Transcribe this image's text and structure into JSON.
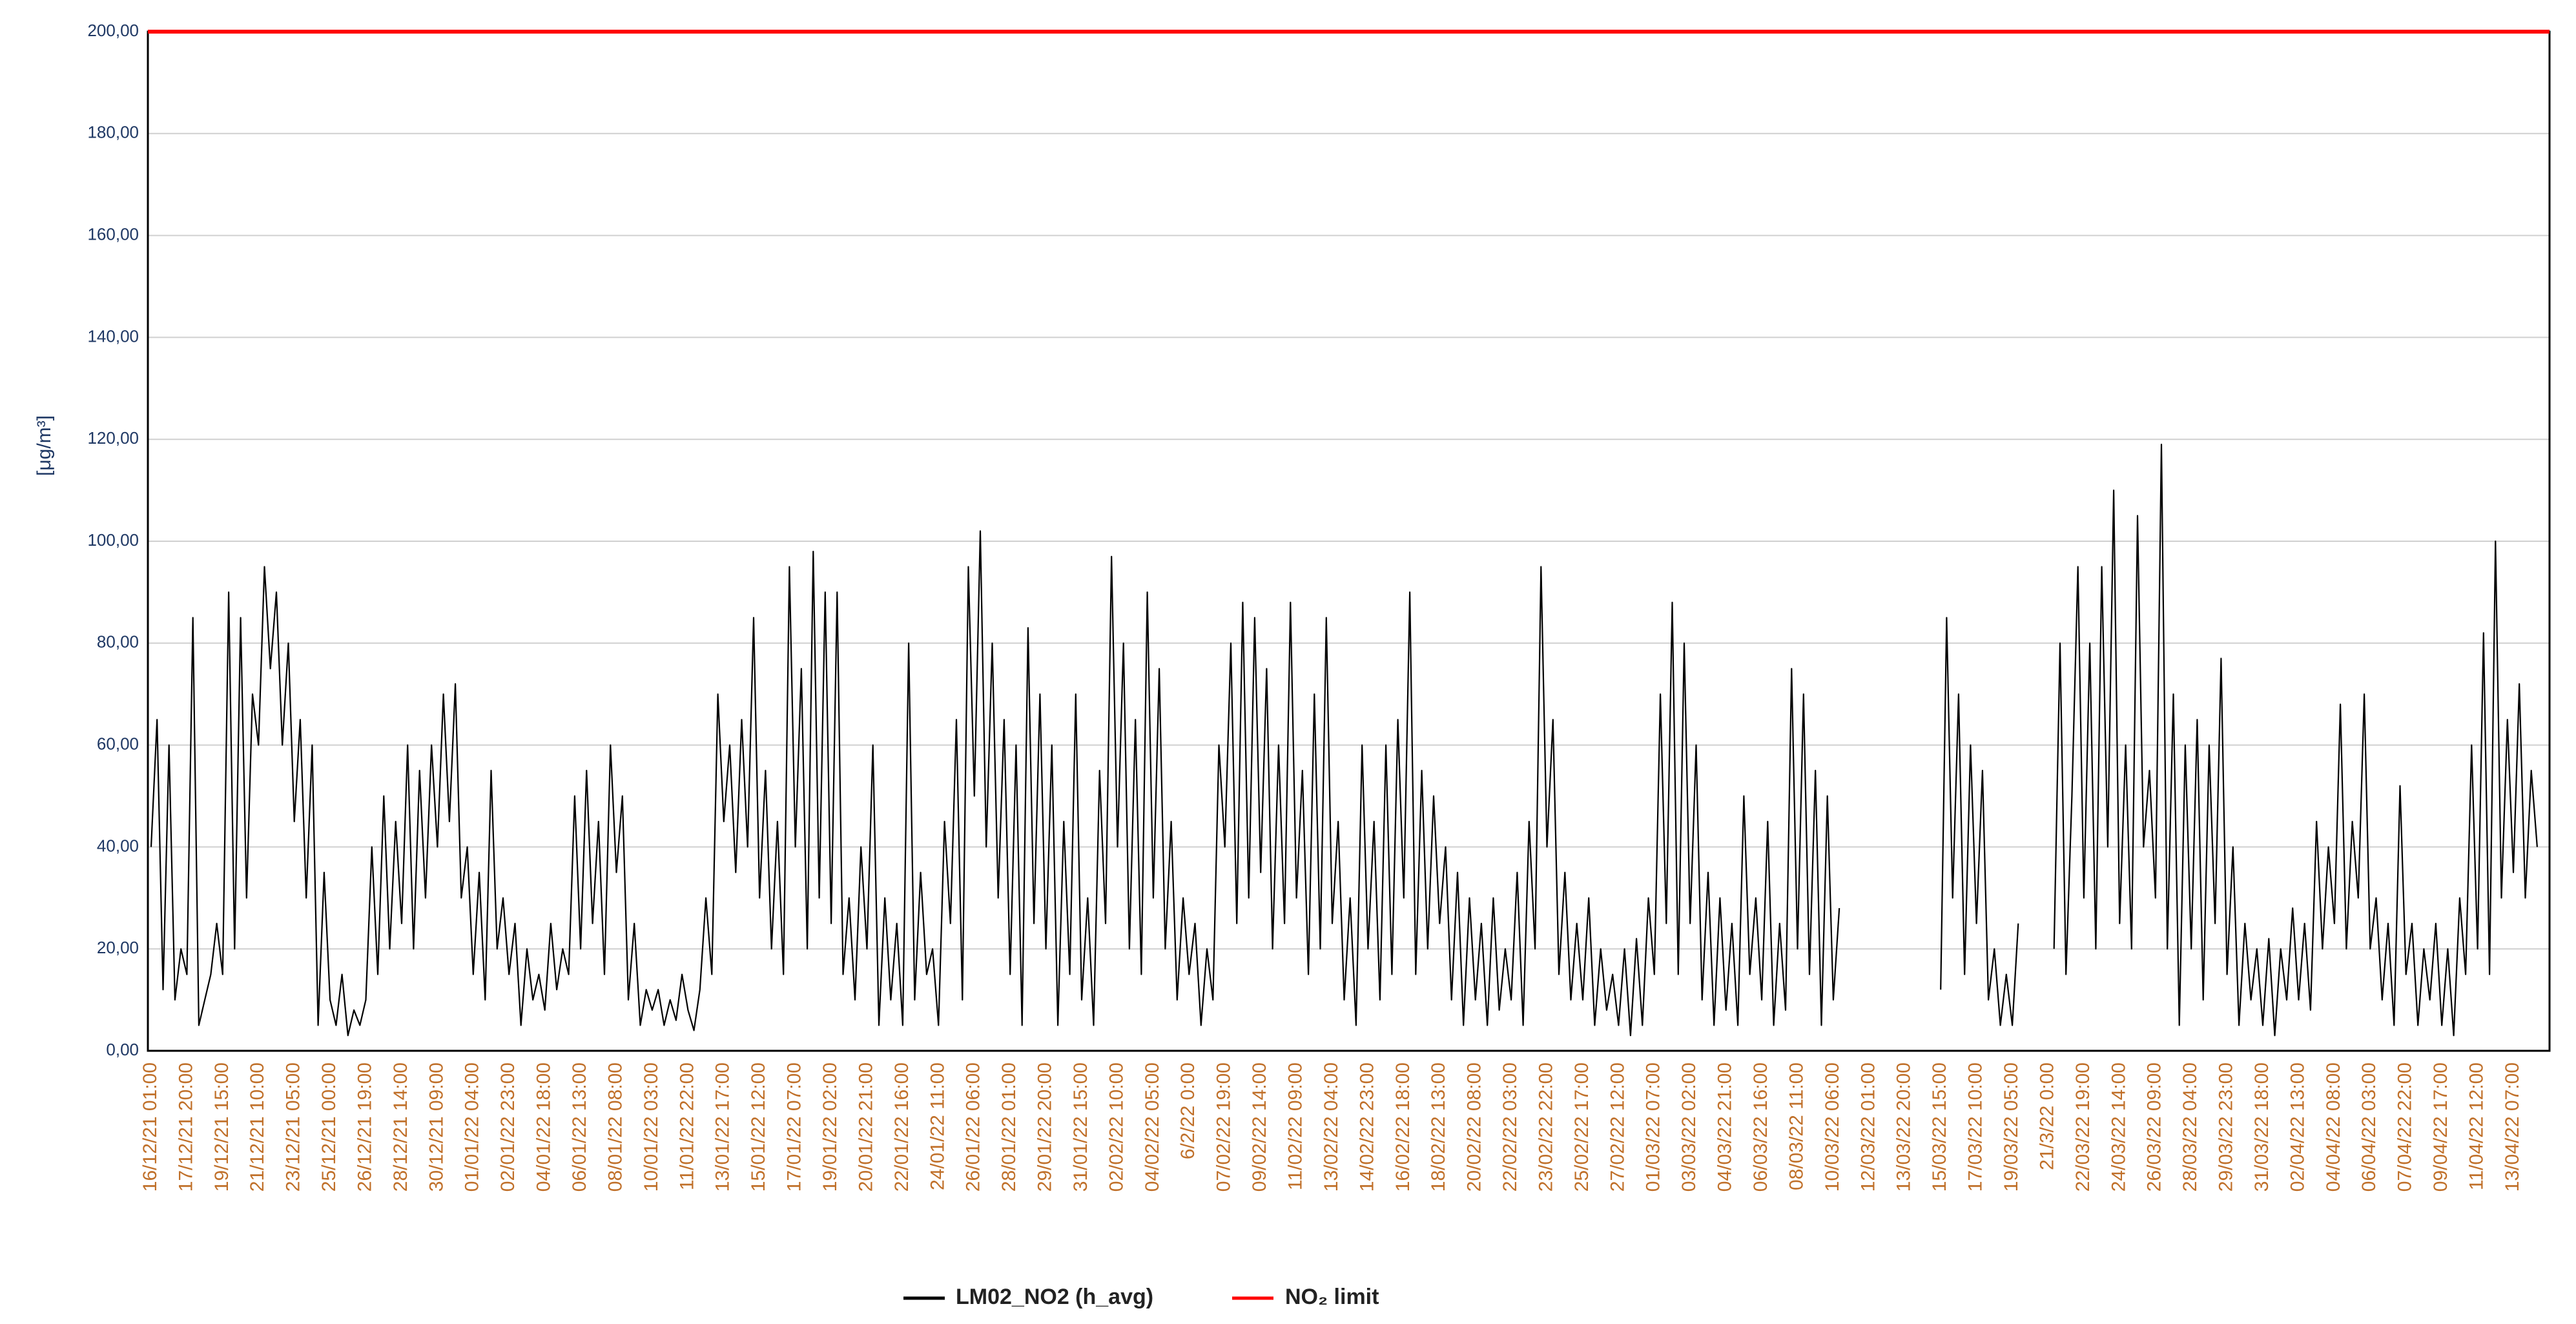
{
  "chart_data": {
    "type": "line",
    "y_label": "[μg/m³]",
    "categories": [
      "16/12/21 01:00",
      null,
      null,
      null,
      null,
      null,
      "17/12/21 20:00",
      null,
      null,
      null,
      null,
      null,
      "19/12/21 15:00",
      null,
      null,
      null,
      null,
      null,
      "21/12/21 10:00",
      null,
      null,
      null,
      null,
      null,
      "23/12/21 05:00",
      null,
      null,
      null,
      null,
      null,
      "25/12/21 00:00",
      null,
      null,
      null,
      null,
      null,
      "26/12/21 19:00",
      null,
      null,
      null,
      null,
      null,
      "28/12/21 14:00",
      null,
      null,
      null,
      null,
      null,
      "30/12/21 09:00",
      null,
      null,
      null,
      null,
      null,
      "01/01/22 04:00",
      null,
      null,
      null,
      null,
      null,
      "02/01/22 23:00",
      null,
      null,
      null,
      null,
      null,
      "04/01/22 18:00",
      null,
      null,
      null,
      null,
      null,
      "06/01/22 13:00",
      null,
      null,
      null,
      null,
      null,
      "08/01/22 08:00",
      null,
      null,
      null,
      null,
      null,
      "10/01/22 03:00",
      null,
      null,
      null,
      null,
      null,
      "11/01/22 22:00",
      null,
      null,
      null,
      null,
      null,
      "13/01/22 17:00",
      null,
      null,
      null,
      null,
      null,
      "15/01/22 12:00",
      null,
      null,
      null,
      null,
      null,
      "17/01/22 07:00",
      null,
      null,
      null,
      null,
      null,
      "19/01/22 02:00",
      null,
      null,
      null,
      null,
      null,
      "20/01/22 21:00",
      null,
      null,
      null,
      null,
      null,
      "22/01/22 16:00",
      null,
      null,
      null,
      null,
      null,
      "24/01/22 11:00",
      null,
      null,
      null,
      null,
      null,
      "26/01/22 06:00",
      null,
      null,
      null,
      null,
      null,
      "28/01/22 01:00",
      null,
      null,
      null,
      null,
      null,
      "29/01/22 20:00",
      null,
      null,
      null,
      null,
      null,
      "31/01/22 15:00",
      null,
      null,
      null,
      null,
      null,
      "02/02/22 10:00",
      null,
      null,
      null,
      null,
      null,
      "04/02/22 05:00",
      null,
      null,
      null,
      null,
      null,
      "6/2/22 0:00",
      null,
      null,
      null,
      null,
      null,
      "07/02/22 19:00",
      null,
      null,
      null,
      null,
      null,
      "09/02/22 14:00",
      null,
      null,
      null,
      null,
      null,
      "11/02/22 09:00",
      null,
      null,
      null,
      null,
      null,
      "13/02/22 04:00",
      null,
      null,
      null,
      null,
      null,
      "14/02/22 23:00",
      null,
      null,
      null,
      null,
      null,
      "16/02/22 18:00",
      null,
      null,
      null,
      null,
      null,
      "18/02/22 13:00",
      null,
      null,
      null,
      null,
      null,
      "20/02/22 08:00",
      null,
      null,
      null,
      null,
      null,
      "22/02/22 03:00",
      null,
      null,
      null,
      null,
      null,
      "23/02/22 22:00",
      null,
      null,
      null,
      null,
      null,
      "25/02/22 17:00",
      null,
      null,
      null,
      null,
      null,
      "27/02/22 12:00",
      null,
      null,
      null,
      null,
      null,
      "01/03/22 07:00",
      null,
      null,
      null,
      null,
      null,
      "03/03/22 02:00",
      null,
      null,
      null,
      null,
      null,
      "04/03/22 21:00",
      null,
      null,
      null,
      null,
      null,
      "06/03/22 16:00",
      null,
      null,
      null,
      null,
      null,
      "08/03/22 11:00",
      null,
      null,
      null,
      null,
      null,
      "10/03/22 06:00",
      null,
      null,
      null,
      null,
      null,
      "12/03/22 01:00",
      null,
      null,
      null,
      null,
      null,
      "13/03/22 20:00",
      null,
      null,
      null,
      null,
      null,
      "15/03/22 15:00",
      null,
      null,
      null,
      null,
      null,
      "17/03/22 10:00",
      null,
      null,
      null,
      null,
      null,
      "19/03/22 05:00",
      null,
      null,
      null,
      null,
      null,
      "21/3/22 0:00",
      null,
      null,
      null,
      null,
      null,
      "22/03/22 19:00",
      null,
      null,
      null,
      null,
      null,
      "24/03/22 14:00",
      null,
      null,
      null,
      null,
      null,
      "26/03/22 09:00",
      null,
      null,
      null,
      null,
      null,
      "28/03/22 04:00",
      null,
      null,
      null,
      null,
      null,
      "29/03/22 23:00",
      null,
      null,
      null,
      null,
      null,
      "31/03/22 18:00",
      null,
      null,
      null,
      null,
      null,
      "02/04/22 13:00",
      null,
      null,
      null,
      null,
      null,
      "04/04/22 08:00",
      null,
      null,
      null,
      null,
      null,
      "06/04/22 03:00",
      null,
      null,
      null,
      null,
      null,
      "07/04/22 22:00",
      null,
      null,
      null,
      null,
      null,
      "09/04/22 17:00",
      null,
      null,
      null,
      null,
      null,
      "11/04/22 12:00",
      null,
      null,
      null,
      null,
      null,
      "13/04/22 07:00",
      null,
      null,
      null,
      null
    ],
    "series": [
      {
        "name": "LM02_NO2 (h_avg)",
        "color": "#000000",
        "values": [
          40,
          65,
          12,
          60,
          10,
          20,
          15,
          85,
          5,
          10,
          15,
          25,
          15,
          90,
          20,
          85,
          30,
          70,
          60,
          95,
          75,
          90,
          60,
          80,
          45,
          65,
          30,
          60,
          5,
          35,
          10,
          5,
          15,
          3,
          8,
          5,
          10,
          40,
          15,
          50,
          20,
          45,
          25,
          60,
          20,
          55,
          30,
          60,
          40,
          70,
          45,
          72,
          30,
          40,
          15,
          35,
          10,
          55,
          20,
          30,
          15,
          25,
          5,
          20,
          10,
          15,
          8,
          25,
          12,
          20,
          15,
          50,
          20,
          55,
          25,
          45,
          15,
          60,
          35,
          50,
          10,
          25,
          5,
          12,
          8,
          12,
          5,
          10,
          6,
          15,
          8,
          4,
          12,
          30,
          15,
          70,
          45,
          60,
          35,
          65,
          40,
          85,
          30,
          55,
          20,
          45,
          15,
          95,
          40,
          75,
          20,
          98,
          30,
          90,
          25,
          90,
          15,
          30,
          10,
          40,
          20,
          60,
          5,
          30,
          10,
          25,
          5,
          80,
          10,
          35,
          15,
          20,
          5,
          45,
          25,
          65,
          10,
          95,
          50,
          102,
          40,
          80,
          30,
          65,
          15,
          60,
          5,
          83,
          25,
          70,
          20,
          60,
          5,
          45,
          15,
          70,
          10,
          30,
          5,
          55,
          25,
          97,
          40,
          80,
          20,
          65,
          15,
          90,
          30,
          75,
          20,
          45,
          10,
          30,
          15,
          25,
          5,
          20,
          10,
          60,
          40,
          80,
          25,
          88,
          30,
          85,
          35,
          75,
          20,
          60,
          25,
          88,
          30,
          55,
          15,
          70,
          20,
          85,
          25,
          45,
          10,
          30,
          5,
          60,
          20,
          45,
          10,
          60,
          15,
          65,
          30,
          90,
          15,
          55,
          20,
          50,
          25,
          40,
          10,
          35,
          5,
          30,
          10,
          25,
          5,
          30,
          8,
          20,
          10,
          35,
          5,
          45,
          20,
          95,
          40,
          65,
          15,
          35,
          10,
          25,
          10,
          30,
          5,
          20,
          8,
          15,
          5,
          20,
          3,
          22,
          5,
          30,
          15,
          70,
          25,
          88,
          15,
          80,
          25,
          60,
          10,
          35,
          5,
          30,
          8,
          25,
          5,
          50,
          15,
          30,
          10,
          45,
          5,
          25,
          8,
          75,
          20,
          70,
          15,
          55,
          5,
          50,
          10,
          28,
          null,
          null,
          null,
          null,
          null,
          null,
          null,
          null,
          null,
          null,
          null,
          null,
          null,
          null,
          null,
          null,
          12,
          85,
          30,
          70,
          15,
          60,
          25,
          55,
          10,
          20,
          5,
          15,
          5,
          25,
          null,
          null,
          null,
          null,
          null,
          20,
          80,
          15,
          50,
          95,
          30,
          80,
          20,
          95,
          40,
          110,
          25,
          60,
          20,
          105,
          40,
          55,
          30,
          119,
          20,
          70,
          5,
          60,
          20,
          65,
          10,
          60,
          25,
          77,
          15,
          40,
          5,
          25,
          10,
          20,
          5,
          22,
          3,
          20,
          10,
          28,
          10,
          25,
          8,
          45,
          20,
          40,
          25,
          68,
          20,
          45,
          30,
          70,
          20,
          30,
          10,
          25,
          5,
          52,
          15,
          25,
          5,
          20,
          10,
          25,
          5,
          20,
          3,
          30,
          15,
          60,
          20,
          82,
          15,
          100,
          30,
          65,
          35,
          72,
          30,
          55,
          40
        ]
      }
    ],
    "reference_line": {
      "name": "NO₂ limit",
      "value": 200,
      "color": "#ff0000"
    },
    "ylim": [
      0,
      200
    ],
    "yticks": [
      {
        "value": 0,
        "label": "0,00"
      },
      {
        "value": 20,
        "label": "20,00"
      },
      {
        "value": 40,
        "label": "40,00"
      },
      {
        "value": 60,
        "label": "60,00"
      },
      {
        "value": 80,
        "label": "80,00"
      },
      {
        "value": 100,
        "label": "100,00"
      },
      {
        "value": 120,
        "label": "120,00"
      },
      {
        "value": 140,
        "label": "140,00"
      },
      {
        "value": 160,
        "label": "160,00"
      },
      {
        "value": 180,
        "label": "180,00"
      },
      {
        "value": 200,
        "label": "200,00"
      }
    ],
    "grid": true
  }
}
